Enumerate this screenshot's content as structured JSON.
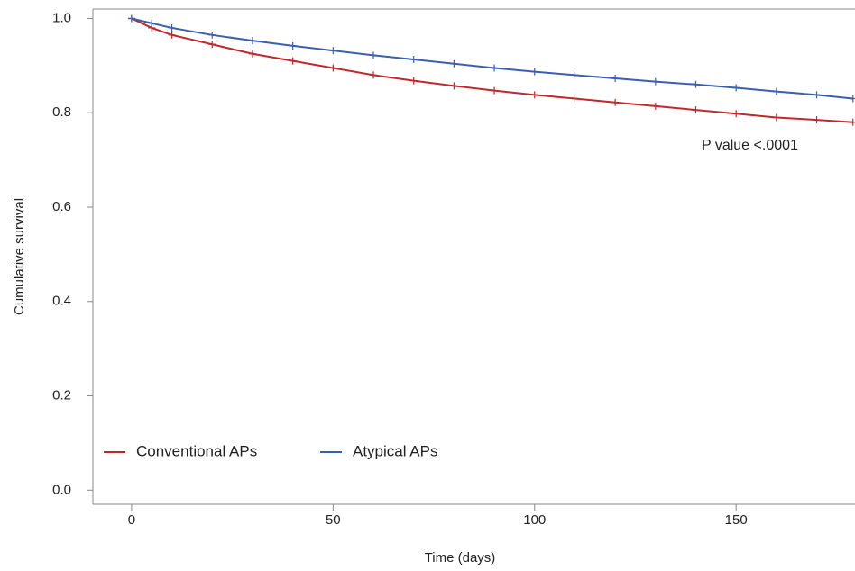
{
  "chart_data": {
    "type": "line",
    "x_label": "Time (days)",
    "y_label": "Cumulative survival",
    "annotation": "P value <.0001",
    "x": [
      0,
      5,
      10,
      20,
      30,
      40,
      50,
      60,
      70,
      80,
      90,
      100,
      110,
      120,
      130,
      140,
      150,
      160,
      170,
      179
    ],
    "series": [
      {
        "name": "Conventional APs",
        "color": "#c0282d",
        "values": [
          1.0,
          0.98,
          0.965,
          0.945,
          0.925,
          0.91,
          0.895,
          0.88,
          0.868,
          0.857,
          0.847,
          0.838,
          0.83,
          0.822,
          0.814,
          0.806,
          0.798,
          0.79,
          0.785,
          0.78
        ]
      },
      {
        "name": "Atypical APs",
        "color": "#3a5fb0",
        "values": [
          1.0,
          0.99,
          0.98,
          0.965,
          0.953,
          0.942,
          0.932,
          0.922,
          0.913,
          0.904,
          0.895,
          0.887,
          0.88,
          0.873,
          0.866,
          0.86,
          0.853,
          0.845,
          0.838,
          0.83
        ]
      }
    ],
    "xlim": [
      -9.6,
      179.5
    ],
    "ylim": [
      -0.03,
      1.02
    ],
    "xticks": [
      0,
      50,
      100,
      150
    ],
    "yticks": [
      {
        "value": 0.0,
        "label": "0.0"
      },
      0.2,
      0.4,
      0.6,
      0.8,
      {
        "value": 1.0,
        "label": "1.0"
      }
    ],
    "legend": "lower left",
    "grid": false
  }
}
